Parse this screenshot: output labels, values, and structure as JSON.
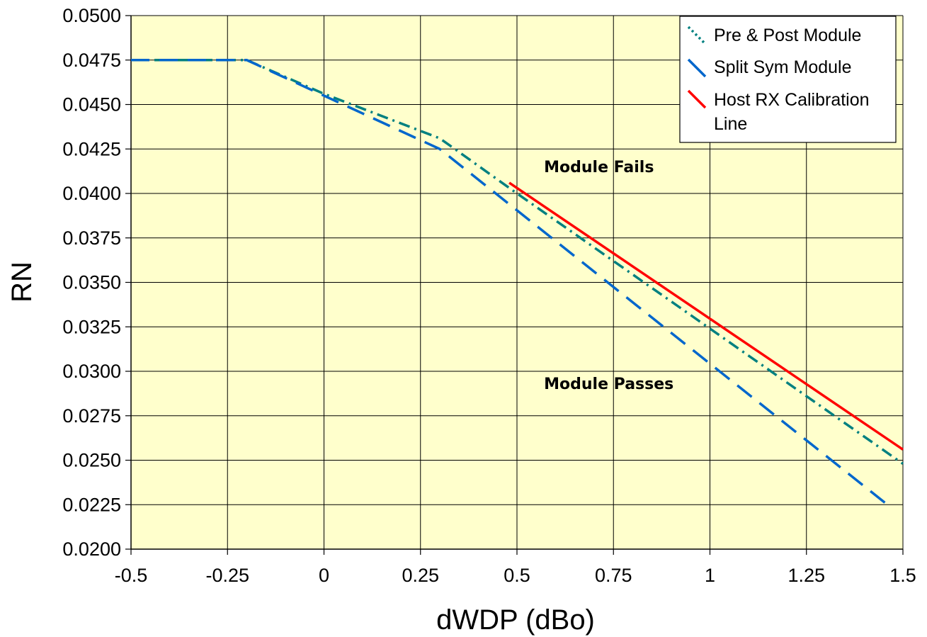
{
  "chart_data": {
    "type": "line",
    "xlabel": "dWDP (dBo)",
    "ylabel": "RN",
    "xlim": [
      -0.5,
      1.5
    ],
    "ylim": [
      0.02,
      0.05
    ],
    "x_ticks": [
      -0.5,
      -0.25,
      0,
      0.25,
      0.5,
      0.75,
      1,
      1.25,
      1.5
    ],
    "x_tick_labels": [
      "-0.5",
      "-0.25",
      "0",
      "0.25",
      "0.5",
      "0.75",
      "1",
      "1.25",
      "1.5"
    ],
    "y_ticks": [
      0.02,
      0.0225,
      0.025,
      0.0275,
      0.03,
      0.0325,
      0.035,
      0.0375,
      0.04,
      0.0425,
      0.045,
      0.0475,
      0.05
    ],
    "y_tick_labels": [
      "0.0200",
      "0.0225",
      "0.0250",
      "0.0275",
      "0.0300",
      "0.0325",
      "0.0350",
      "0.0375",
      "0.0400",
      "0.0425",
      "0.0450",
      "0.0475",
      "0.0500"
    ],
    "grid": true,
    "plot_background": "#FFFFCC",
    "legend_position": "top-right",
    "series": [
      {
        "name": "Pre & Post Module",
        "color": "#008080",
        "style": "dash-dot",
        "x": [
          -0.5,
          -0.2,
          0,
          0.3,
          0.5,
          1.5
        ],
        "y": [
          0.0475,
          0.0475,
          0.0456,
          0.0431,
          0.04,
          0.0248
        ]
      },
      {
        "name": "Split Sym Module",
        "color": "#0066CC",
        "style": "dashed",
        "x": [
          -0.5,
          -0.2,
          0,
          0.3,
          1.46
        ],
        "y": [
          0.0475,
          0.0475,
          0.0455,
          0.0425,
          0.0225
        ]
      },
      {
        "name": "Host RX Calibration Line",
        "color": "#FF0000",
        "style": "solid",
        "x": [
          0.48,
          1.5
        ],
        "y": [
          0.0406,
          0.0256
        ]
      }
    ],
    "annotations": [
      {
        "text": "Module Fails",
        "x": 0.57,
        "y": 0.0412
      },
      {
        "text": "Module Passes",
        "x": 0.57,
        "y": 0.029
      }
    ]
  }
}
